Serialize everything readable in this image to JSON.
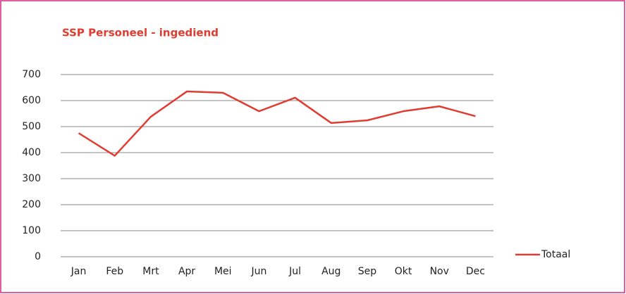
{
  "chart_data": {
    "type": "line",
    "title": "SSP Personeel - ingediend",
    "categories": [
      "Jan",
      "Feb",
      "Mrt",
      "Apr",
      "Mei",
      "Jun",
      "Jul",
      "Aug",
      "Sep",
      "Okt",
      "Nov",
      "Dec"
    ],
    "series": [
      {
        "name": "Totaal",
        "color": "#e03c31",
        "values": [
          475,
          388,
          538,
          635,
          630,
          559,
          611,
          514,
          524,
          559,
          578,
          540
        ]
      }
    ],
    "ylim": [
      0,
      700
    ],
    "yticks": [
      0,
      100,
      200,
      300,
      400,
      500,
      600,
      700
    ],
    "grid": true,
    "legend": "right"
  }
}
